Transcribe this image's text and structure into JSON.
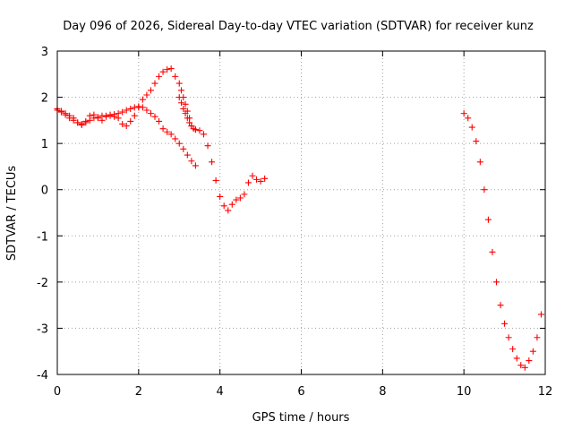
{
  "chart_data": {
    "type": "scatter",
    "title": "Day 096 of 2026, Sidereal Day-to-day VTEC variation (SDTVAR) for receiver kunz",
    "xlabel": "GPS time / hours",
    "ylabel": "SDTVAR / TECUs",
    "xlim": [
      0,
      12
    ],
    "ylim": [
      -4,
      3
    ],
    "xticks": [
      "0",
      "2",
      "4",
      "6",
      "8",
      "10",
      "12"
    ],
    "yticks": [
      "-4",
      "-3",
      "-2",
      "-1",
      "0",
      "1",
      "2",
      "3"
    ],
    "grid": true,
    "marker": "plus",
    "color": "#ff0000",
    "series": [
      {
        "x": [
          0.0,
          0.1,
          0.2,
          0.3,
          0.4,
          0.5,
          0.6,
          0.7,
          0.8,
          0.9,
          1.0,
          1.1,
          1.2,
          1.3,
          1.4,
          1.5,
          1.6,
          1.7,
          1.8,
          1.9,
          2.0,
          2.1,
          2.2,
          2.3,
          2.4,
          2.5,
          2.6,
          2.7,
          2.8,
          2.9,
          3.0,
          3.1,
          3.2,
          3.3,
          3.4
        ],
        "y": [
          1.75,
          1.7,
          1.62,
          1.55,
          1.5,
          1.45,
          1.42,
          1.45,
          1.5,
          1.55,
          1.57,
          1.6,
          1.6,
          1.62,
          1.63,
          1.65,
          1.68,
          1.72,
          1.75,
          1.78,
          1.8,
          1.78,
          1.72,
          1.65,
          1.58,
          1.48,
          1.32,
          1.25,
          1.2,
          1.1,
          1.0,
          0.88,
          0.75,
          0.62,
          0.52
        ]
      },
      {
        "x": [
          0.0,
          0.1,
          0.2,
          0.3,
          0.4,
          0.5,
          0.6,
          0.7,
          0.8,
          0.9,
          1.0,
          1.1,
          1.2,
          1.3,
          1.4,
          1.5,
          1.6,
          1.7,
          1.8,
          1.9,
          2.0,
          2.1,
          2.2,
          2.3,
          2.4,
          2.5,
          2.6,
          2.7,
          2.8,
          2.9,
          3.0,
          3.05,
          3.1,
          3.15,
          3.2,
          3.25,
          3.3,
          3.4,
          3.5,
          3.6,
          3.7,
          3.8,
          3.9,
          4.0,
          4.1,
          4.2,
          4.3,
          4.4,
          4.5,
          4.6,
          4.7,
          4.8,
          4.9,
          5.0,
          5.1
        ],
        "y": [
          1.72,
          1.68,
          1.65,
          1.6,
          1.55,
          1.45,
          1.4,
          1.48,
          1.6,
          1.62,
          1.55,
          1.5,
          1.58,
          1.6,
          1.58,
          1.55,
          1.42,
          1.38,
          1.48,
          1.6,
          1.78,
          1.95,
          2.05,
          2.15,
          2.3,
          2.45,
          2.55,
          2.6,
          2.62,
          2.45,
          2.3,
          2.15,
          2.0,
          1.85,
          1.7,
          1.55,
          1.38,
          1.3,
          1.28,
          1.2,
          0.95,
          0.6,
          0.2,
          -0.15,
          -0.35,
          -0.45,
          -0.32,
          -0.22,
          -0.18,
          -0.1,
          0.15,
          0.3,
          0.22,
          0.18,
          0.24
        ]
      },
      {
        "x": [
          3.0,
          3.05,
          3.1,
          3.15,
          3.2,
          3.25,
          3.3,
          3.35,
          3.4
        ],
        "y": [
          2.0,
          1.88,
          1.75,
          1.65,
          1.55,
          1.45,
          1.38,
          1.32,
          1.3
        ]
      },
      {
        "x": [
          10.0,
          10.1,
          10.2,
          10.3,
          10.4,
          10.5,
          10.6,
          10.7,
          10.8,
          10.9,
          11.0,
          11.1,
          11.2,
          11.3,
          11.4,
          11.5,
          11.6,
          11.7,
          11.8,
          11.9
        ],
        "y": [
          1.65,
          1.55,
          1.35,
          1.05,
          0.6,
          0.0,
          -0.65,
          -1.35,
          -2.0,
          -2.5,
          -2.9,
          -3.2,
          -3.45,
          -3.65,
          -3.8,
          -3.85,
          -3.7,
          -3.5,
          -3.2,
          -2.7
        ]
      }
    ]
  }
}
